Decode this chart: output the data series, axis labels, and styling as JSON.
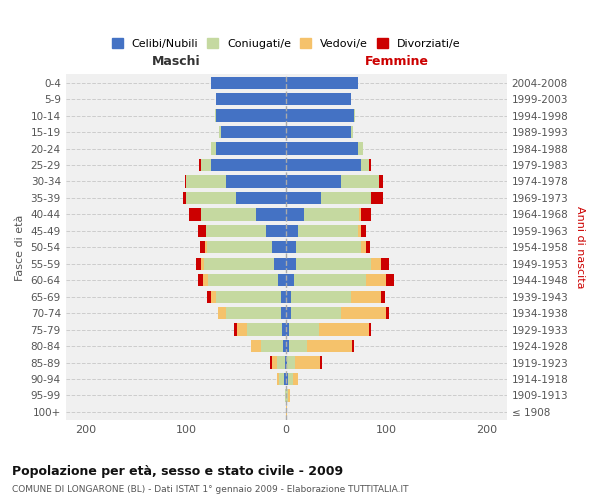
{
  "age_groups": [
    "100+",
    "95-99",
    "90-94",
    "85-89",
    "80-84",
    "75-79",
    "70-74",
    "65-69",
    "60-64",
    "55-59",
    "50-54",
    "45-49",
    "40-44",
    "35-39",
    "30-34",
    "25-29",
    "20-24",
    "15-19",
    "10-14",
    "5-9",
    "0-4"
  ],
  "birth_years": [
    "≤ 1908",
    "1909-1913",
    "1914-1918",
    "1919-1923",
    "1924-1928",
    "1929-1933",
    "1934-1938",
    "1939-1943",
    "1944-1948",
    "1949-1953",
    "1954-1958",
    "1959-1963",
    "1964-1968",
    "1969-1973",
    "1974-1978",
    "1979-1983",
    "1984-1988",
    "1989-1993",
    "1994-1998",
    "1999-2003",
    "2004-2008"
  ],
  "male_celibi": [
    0,
    0,
    2,
    1,
    3,
    4,
    5,
    5,
    8,
    12,
    14,
    20,
    30,
    50,
    60,
    75,
    70,
    65,
    70,
    70,
    75
  ],
  "male_coniugati": [
    0,
    1,
    5,
    8,
    22,
    35,
    55,
    65,
    70,
    70,
    65,
    60,
    55,
    50,
    40,
    10,
    5,
    2,
    1,
    0,
    0
  ],
  "male_vedovi": [
    0,
    0,
    2,
    5,
    10,
    10,
    8,
    5,
    5,
    3,
    2,
    0,
    0,
    0,
    0,
    0,
    0,
    0,
    0,
    0,
    0
  ],
  "male_divorziati": [
    0,
    0,
    0,
    2,
    0,
    3,
    0,
    4,
    5,
    5,
    5,
    8,
    12,
    3,
    1,
    2,
    0,
    0,
    0,
    0,
    0
  ],
  "female_celibi": [
    0,
    0,
    2,
    1,
    3,
    3,
    5,
    5,
    8,
    10,
    10,
    12,
    18,
    35,
    55,
    75,
    72,
    65,
    68,
    65,
    72
  ],
  "female_coniugati": [
    0,
    2,
    5,
    8,
    18,
    30,
    50,
    60,
    72,
    75,
    65,
    60,
    55,
    50,
    38,
    8,
    5,
    2,
    1,
    0,
    0
  ],
  "female_vedovi": [
    1,
    2,
    5,
    25,
    45,
    50,
    45,
    30,
    20,
    10,
    5,
    3,
    2,
    0,
    0,
    0,
    0,
    0,
    0,
    0,
    0
  ],
  "female_divorziati": [
    0,
    0,
    0,
    2,
    2,
    2,
    3,
    4,
    8,
    8,
    4,
    5,
    10,
    12,
    4,
    2,
    0,
    0,
    0,
    0,
    0
  ],
  "color_celibi": "#4472c4",
  "color_coniugati": "#c5d9a0",
  "color_vedovi": "#f5c26b",
  "color_divorziati": "#cc0000",
  "title": "Popolazione per età, sesso e stato civile - 2009",
  "subtitle": "COMUNE DI LONGARONE (BL) - Dati ISTAT 1° gennaio 2009 - Elaborazione TUTTITALIA.IT",
  "xlabel_left": "Maschi",
  "xlabel_right": "Femmine",
  "ylabel_left": "Fasce di età",
  "ylabel_right": "Anni di nascita",
  "xlim": 220,
  "bg_color": "#f0f0f0",
  "legend_labels": [
    "Celibi/Nubili",
    "Coniugati/e",
    "Vedovi/e",
    "Divorziati/e"
  ]
}
